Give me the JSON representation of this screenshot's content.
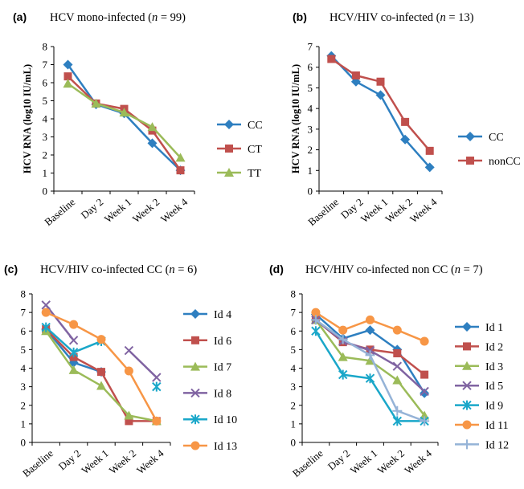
{
  "chart_data": [
    {
      "type": "line",
      "panel": "(a)",
      "title": "HCV mono-infected (n = 99)",
      "title_parts": {
        "pre": "HCV mono-infected (",
        "n": "n",
        "post": " = 99)"
      },
      "ylabel": "HCV RNA (log10 IU/mL)",
      "xlabel": "",
      "categories": [
        "Baseline",
        "Day 2",
        "Week 1",
        "Week 2",
        "Week 4"
      ],
      "ylim": [
        0,
        8
      ],
      "yticks": [
        "0",
        "1",
        "2",
        "3",
        "4",
        "5",
        "6",
        "7",
        "8"
      ],
      "legend_position": "right",
      "series": [
        {
          "name": "CC",
          "color": "#2e7fc0",
          "marker": "diamond",
          "values": [
            7.0,
            4.8,
            4.3,
            2.65,
            1.15
          ]
        },
        {
          "name": "CT",
          "color": "#c0504d",
          "marker": "square",
          "values": [
            6.35,
            4.85,
            4.55,
            3.35,
            1.15
          ]
        },
        {
          "name": "TT",
          "color": "#9bbb59",
          "marker": "triangle",
          "values": [
            5.95,
            4.85,
            4.35,
            3.55,
            1.85
          ]
        }
      ]
    },
    {
      "type": "line",
      "panel": "(b)",
      "title": "HCV/HIV co-infected (n = 13)",
      "title_parts": {
        "pre": "HCV/HIV co-infected (",
        "n": "n",
        "post": " = 13)"
      },
      "ylabel": "HCV RNA (log10 IU/mL)",
      "xlabel": "",
      "categories": [
        "Baseline",
        "Day 2",
        "Week 1",
        "Week 2",
        "Week 4"
      ],
      "ylim": [
        0,
        7
      ],
      "yticks": [
        "0",
        "1",
        "2",
        "3",
        "4",
        "5",
        "6",
        "7"
      ],
      "legend_position": "right",
      "series": [
        {
          "name": "CC",
          "color": "#2e7fc0",
          "marker": "diamond",
          "values": [
            6.55,
            5.3,
            4.65,
            2.5,
            1.15
          ]
        },
        {
          "name": "nonCC",
          "color": "#c0504d",
          "marker": "square",
          "values": [
            6.4,
            5.6,
            5.3,
            3.35,
            1.95
          ]
        }
      ]
    },
    {
      "type": "line",
      "panel": "(c)",
      "title": "HCV/HIV co-infected CC (n = 6)",
      "title_parts": {
        "pre": "HCV/HIV co-infected CC (",
        "n": "n",
        "post": " = 6)"
      },
      "ylabel": "",
      "xlabel": "",
      "categories": [
        "Baseline",
        "Day 2",
        "Week 1",
        "Week 2",
        "Week 4"
      ],
      "ylim": [
        0,
        8
      ],
      "yticks": [
        "0",
        "1",
        "2",
        "3",
        "4",
        "5",
        "6",
        "7",
        "8"
      ],
      "legend_position": "right",
      "series": [
        {
          "name": "Id 4",
          "color": "#2e7fc0",
          "marker": "diamond",
          "values": [
            6.1,
            4.3,
            3.8,
            null,
            null
          ]
        },
        {
          "name": "Id 6",
          "color": "#c0504d",
          "marker": "square",
          "values": [
            6.1,
            4.6,
            3.8,
            1.15,
            1.15
          ]
        },
        {
          "name": "Id 7",
          "color": "#9bbb59",
          "marker": "triangle",
          "values": [
            6.0,
            3.9,
            3.05,
            1.45,
            1.15
          ]
        },
        {
          "name": "Id 8",
          "color": "#8064a2",
          "marker": "x",
          "values": [
            7.4,
            5.5,
            null,
            4.95,
            3.5
          ]
        },
        {
          "name": "Id 10",
          "color": "#1aa7c9",
          "marker": "star",
          "values": [
            6.2,
            4.85,
            5.45,
            null,
            3.0
          ]
        },
        {
          "name": "Id 13",
          "color": "#f79646",
          "marker": "circle",
          "values": [
            7.0,
            6.35,
            5.55,
            3.85,
            1.15
          ]
        }
      ]
    },
    {
      "type": "line",
      "panel": "(d)",
      "title": "HCV/HIV co-infected non CC (n = 7)",
      "title_parts": {
        "pre": "HCV/HIV co-infected non CC (",
        "n": "n",
        "post": " = 7)"
      },
      "ylabel": "",
      "xlabel": "",
      "categories": [
        "Baseline",
        "Day 2",
        "Week 1",
        "Week 2",
        "Week 4"
      ],
      "ylim": [
        0,
        8
      ],
      "yticks": [
        "0",
        "1",
        "2",
        "3",
        "4",
        "5",
        "6",
        "7",
        "8"
      ],
      "legend_position": "right",
      "series": [
        {
          "name": "Id 1",
          "color": "#2e7fc0",
          "marker": "diamond",
          "values": [
            6.9,
            5.6,
            6.05,
            5.0,
            2.65
          ]
        },
        {
          "name": "Id 2",
          "color": "#c0504d",
          "marker": "square",
          "values": [
            6.6,
            5.4,
            5.0,
            4.8,
            3.65
          ]
        },
        {
          "name": "Id 3",
          "color": "#9bbb59",
          "marker": "triangle",
          "values": [
            6.6,
            4.6,
            4.4,
            3.35,
            1.45
          ]
        },
        {
          "name": "Id 5",
          "color": "#8064a2",
          "marker": "x",
          "values": [
            6.6,
            5.45,
            4.95,
            4.1,
            2.75
          ]
        },
        {
          "name": "Id 9",
          "color": "#1aa7c9",
          "marker": "star",
          "values": [
            6.0,
            3.65,
            3.45,
            1.15,
            1.15
          ]
        },
        {
          "name": "Id 11",
          "color": "#f79646",
          "marker": "circle",
          "values": [
            7.0,
            6.05,
            6.6,
            6.05,
            5.45
          ]
        },
        {
          "name": "Id 12",
          "color": "#95b3d7",
          "marker": "plus",
          "values": [
            6.6,
            5.55,
            4.7,
            1.7,
            1.15
          ]
        }
      ]
    }
  ]
}
